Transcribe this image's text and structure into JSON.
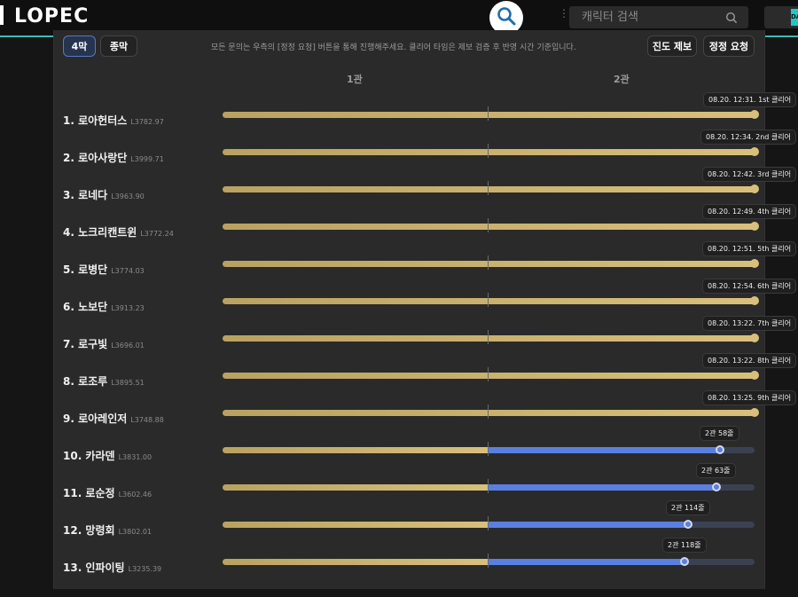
{
  "app": {
    "logo": "LOPEC"
  },
  "search": {
    "placeholder": "캐릭터 검색"
  },
  "top_right": {
    "badge_text": "DA"
  },
  "toolbar": {
    "tab_4": "4막",
    "tab_total": "종막",
    "notice": "모든 문의는 우측의 [정정 요청] 버튼을 통해 진행해주세요. 클리어 타임은 제보 검증 후 반영 시간 기준입니다.",
    "report_label": "진도 제보",
    "fix_label": "정정 요청"
  },
  "gates": [
    "1관",
    "2관"
  ],
  "colors": {
    "accent_teal": "#3fb9b4",
    "gold": "#d8c07c",
    "blue": "#5a7fe0"
  },
  "teams": [
    {
      "rank_name": "1. 로아헌터스",
      "level": "L3782.97",
      "progress": 1.0,
      "status": "08.20. 12:31. 1st 클리어"
    },
    {
      "rank_name": "2. 로아사랑단",
      "level": "L3999.71",
      "progress": 1.0,
      "status": "08.20. 12:34. 2nd 클리어"
    },
    {
      "rank_name": "3. 로네다",
      "level": "L3963.90",
      "progress": 1.0,
      "status": "08.20. 12:42. 3rd 클리어"
    },
    {
      "rank_name": "4. 노크리캔트윈",
      "level": "L3772.24",
      "progress": 1.0,
      "status": "08.20. 12:49. 4th 클리어"
    },
    {
      "rank_name": "5. 로병단",
      "level": "L3774.03",
      "progress": 1.0,
      "status": "08.20. 12:51. 5th 클리어"
    },
    {
      "rank_name": "6. 노보단",
      "level": "L3913.23",
      "progress": 1.0,
      "status": "08.20. 12:54. 6th 클리어"
    },
    {
      "rank_name": "7. 로구빛",
      "level": "L3696.01",
      "progress": 1.0,
      "status": "08.20. 13:22. 7th 클리어"
    },
    {
      "rank_name": "8. 로조루",
      "level": "L3895.51",
      "progress": 1.0,
      "status": "08.20. 13:22. 8th 클리어"
    },
    {
      "rank_name": "9. 로아레인저",
      "level": "L3748.88",
      "progress": 1.0,
      "status": "08.20. 13:25. 9th 클리어"
    },
    {
      "rank_name": "10. 카라덴",
      "level": "L3831.00",
      "progress": 0.935,
      "status": "2관 58줄"
    },
    {
      "rank_name": "11. 로순정",
      "level": "L3602.46",
      "progress": 0.928,
      "status": "2관 63줄"
    },
    {
      "rank_name": "12. 망령회",
      "level": "L3802.01",
      "progress": 0.875,
      "status": "2관 114줄"
    },
    {
      "rank_name": "13. 인파이팅",
      "level": "L3235.39",
      "progress": 0.868,
      "status": "2관 118줄"
    }
  ]
}
